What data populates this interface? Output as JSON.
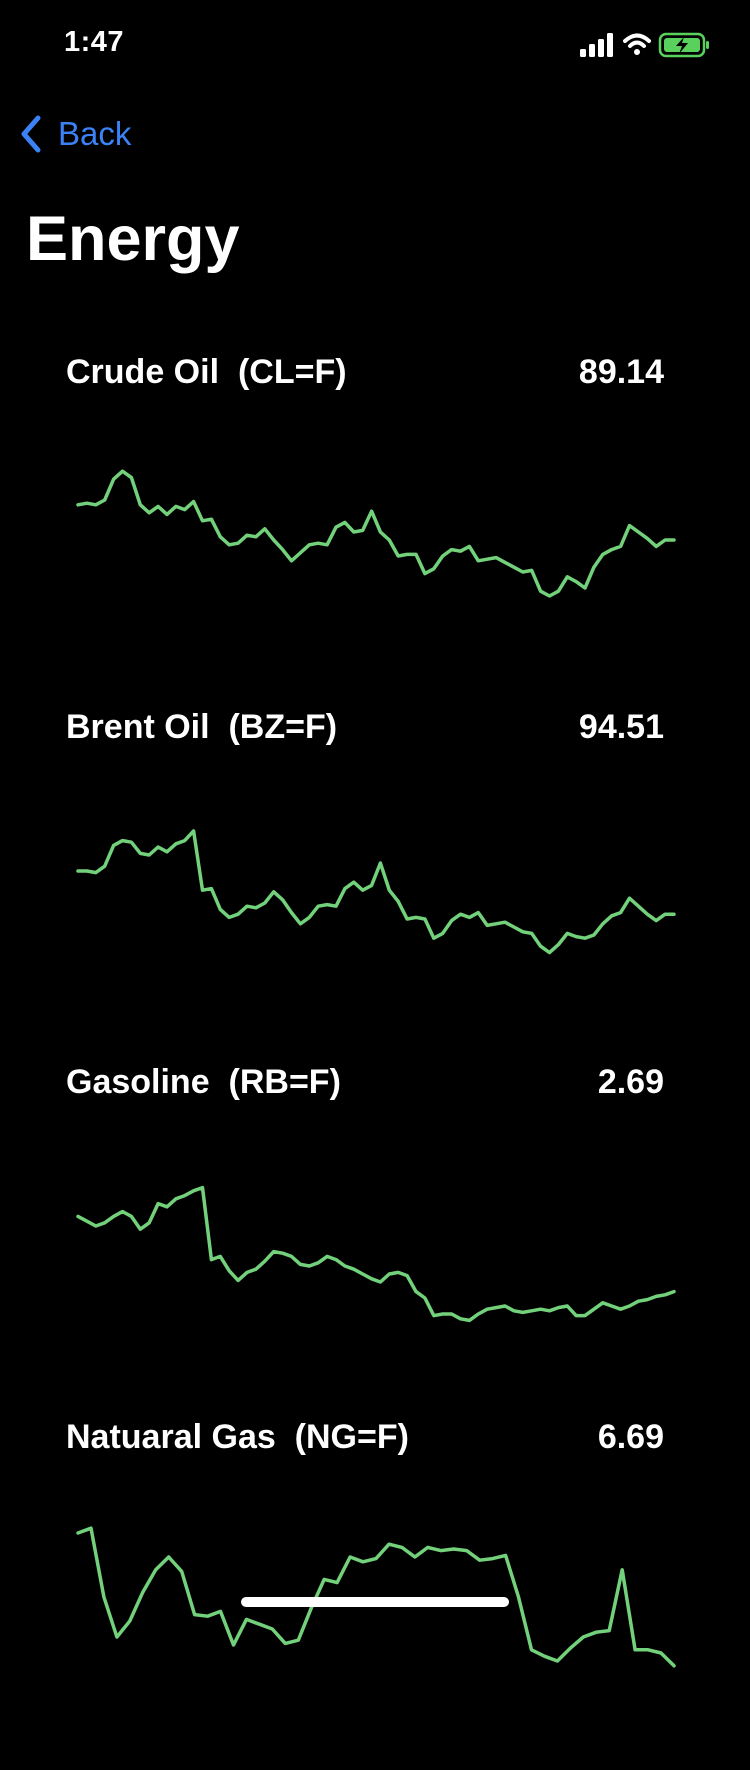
{
  "status": {
    "time": "1:47"
  },
  "nav": {
    "back_label": "Back"
  },
  "page": {
    "title": "Energy"
  },
  "colors": {
    "accent": "#3b82f6",
    "spark_line": "#72d17a",
    "battery": "#5bd15d"
  },
  "rows": [
    {
      "name": "Crude Oil",
      "symbol": "(CL=F)",
      "value": "89.14",
      "trend": [
        0.72,
        0.73,
        0.72,
        0.75,
        0.88,
        0.93,
        0.89,
        0.72,
        0.67,
        0.71,
        0.66,
        0.71,
        0.69,
        0.74,
        0.62,
        0.63,
        0.52,
        0.47,
        0.48,
        0.53,
        0.52,
        0.57,
        0.5,
        0.44,
        0.37,
        0.42,
        0.47,
        0.48,
        0.47,
        0.58,
        0.61,
        0.55,
        0.56,
        0.68,
        0.55,
        0.5,
        0.4,
        0.41,
        0.41,
        0.29,
        0.32,
        0.4,
        0.44,
        0.43,
        0.46,
        0.37,
        0.38,
        0.39,
        0.36,
        0.33,
        0.3,
        0.31,
        0.18,
        0.15,
        0.18,
        0.27,
        0.24,
        0.2,
        0.33,
        0.41,
        0.44,
        0.46,
        0.59,
        0.55,
        0.51,
        0.46,
        0.5,
        0.5
      ]
    },
    {
      "name": "Brent Oil",
      "symbol": "(BZ=F)",
      "value": "94.51",
      "trend": [
        0.65,
        0.65,
        0.64,
        0.68,
        0.81,
        0.84,
        0.83,
        0.76,
        0.75,
        0.8,
        0.77,
        0.82,
        0.84,
        0.9,
        0.53,
        0.54,
        0.41,
        0.36,
        0.38,
        0.43,
        0.42,
        0.45,
        0.52,
        0.47,
        0.39,
        0.32,
        0.36,
        0.43,
        0.44,
        0.43,
        0.54,
        0.58,
        0.53,
        0.56,
        0.7,
        0.53,
        0.46,
        0.35,
        0.36,
        0.35,
        0.23,
        0.26,
        0.34,
        0.38,
        0.36,
        0.39,
        0.31,
        0.32,
        0.33,
        0.3,
        0.27,
        0.26,
        0.18,
        0.14,
        0.19,
        0.26,
        0.24,
        0.23,
        0.25,
        0.32,
        0.37,
        0.39,
        0.48,
        0.43,
        0.38,
        0.34,
        0.38,
        0.38
      ]
    },
    {
      "name": "Gasoline",
      "symbol": "(RB=F)",
      "value": "2.69",
      "trend": [
        0.71,
        0.68,
        0.65,
        0.67,
        0.71,
        0.74,
        0.71,
        0.63,
        0.67,
        0.79,
        0.77,
        0.82,
        0.84,
        0.87,
        0.89,
        0.44,
        0.46,
        0.37,
        0.31,
        0.36,
        0.38,
        0.43,
        0.49,
        0.48,
        0.46,
        0.41,
        0.4,
        0.42,
        0.46,
        0.44,
        0.4,
        0.38,
        0.35,
        0.32,
        0.3,
        0.35,
        0.36,
        0.34,
        0.24,
        0.2,
        0.09,
        0.1,
        0.1,
        0.07,
        0.06,
        0.1,
        0.13,
        0.14,
        0.15,
        0.12,
        0.11,
        0.12,
        0.13,
        0.12,
        0.14,
        0.15,
        0.09,
        0.09,
        0.13,
        0.17,
        0.15,
        0.13,
        0.15,
        0.18,
        0.19,
        0.21,
        0.22,
        0.24
      ]
    },
    {
      "name": "Natuaral Gas",
      "symbol": "(NG=F)",
      "value": "6.69",
      "trend": [
        0.95,
        0.98,
        0.55,
        0.3,
        0.4,
        0.58,
        0.72,
        0.8,
        0.71,
        0.44,
        0.43,
        0.46,
        0.25,
        0.41,
        0.38,
        0.35,
        0.26,
        0.28,
        0.48,
        0.66,
        0.64,
        0.8,
        0.77,
        0.79,
        0.88,
        0.86,
        0.8,
        0.86,
        0.84,
        0.85,
        0.84,
        0.78,
        0.79,
        0.81,
        0.55,
        0.22,
        0.18,
        0.15,
        0.23,
        0.3,
        0.33,
        0.34,
        0.72,
        0.22,
        0.22,
        0.2,
        0.12
      ]
    }
  ]
}
